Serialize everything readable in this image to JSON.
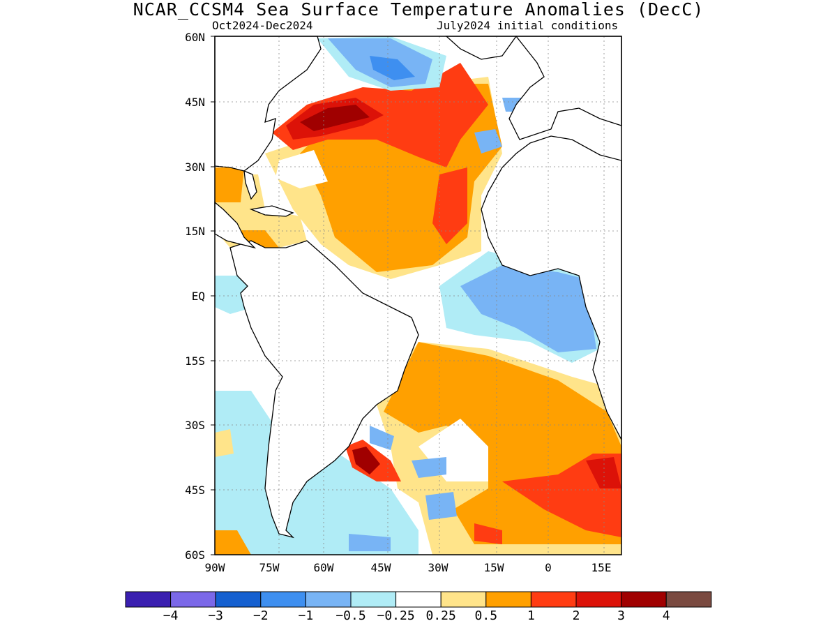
{
  "title": "NCAR_CCSM4 Sea Surface Temperature Anomalies (DecC)",
  "season": "Oct2024-Dec2024",
  "init": "July2024 initial conditions",
  "lat_labels": [
    "60N",
    "45N",
    "30N",
    "15N",
    "EQ",
    "15S",
    "30S",
    "45S",
    "60S"
  ],
  "lon_labels": [
    "90W",
    "75W",
    "60W",
    "45W",
    "30W",
    "15W",
    "0",
    "15E"
  ],
  "map_extent": {
    "lon": [
      -90,
      16
    ],
    "lat": [
      -60,
      60
    ]
  },
  "colorbar": {
    "colors": [
      "#3a1fb0",
      "#7b68e8",
      "#1560d0",
      "#3e8ff0",
      "#78b4f5",
      "#b0ecf6",
      "#ffffff",
      "#ffe48a",
      "#ffa000",
      "#ff3c12",
      "#dc1208",
      "#a00000",
      "#7a4a40"
    ],
    "labels": [
      "-4",
      "-3",
      "-2",
      "-1",
      "-0.5",
      "-0.25",
      "0.25",
      "0.5",
      "1",
      "2",
      "3",
      "4"
    ]
  }
}
